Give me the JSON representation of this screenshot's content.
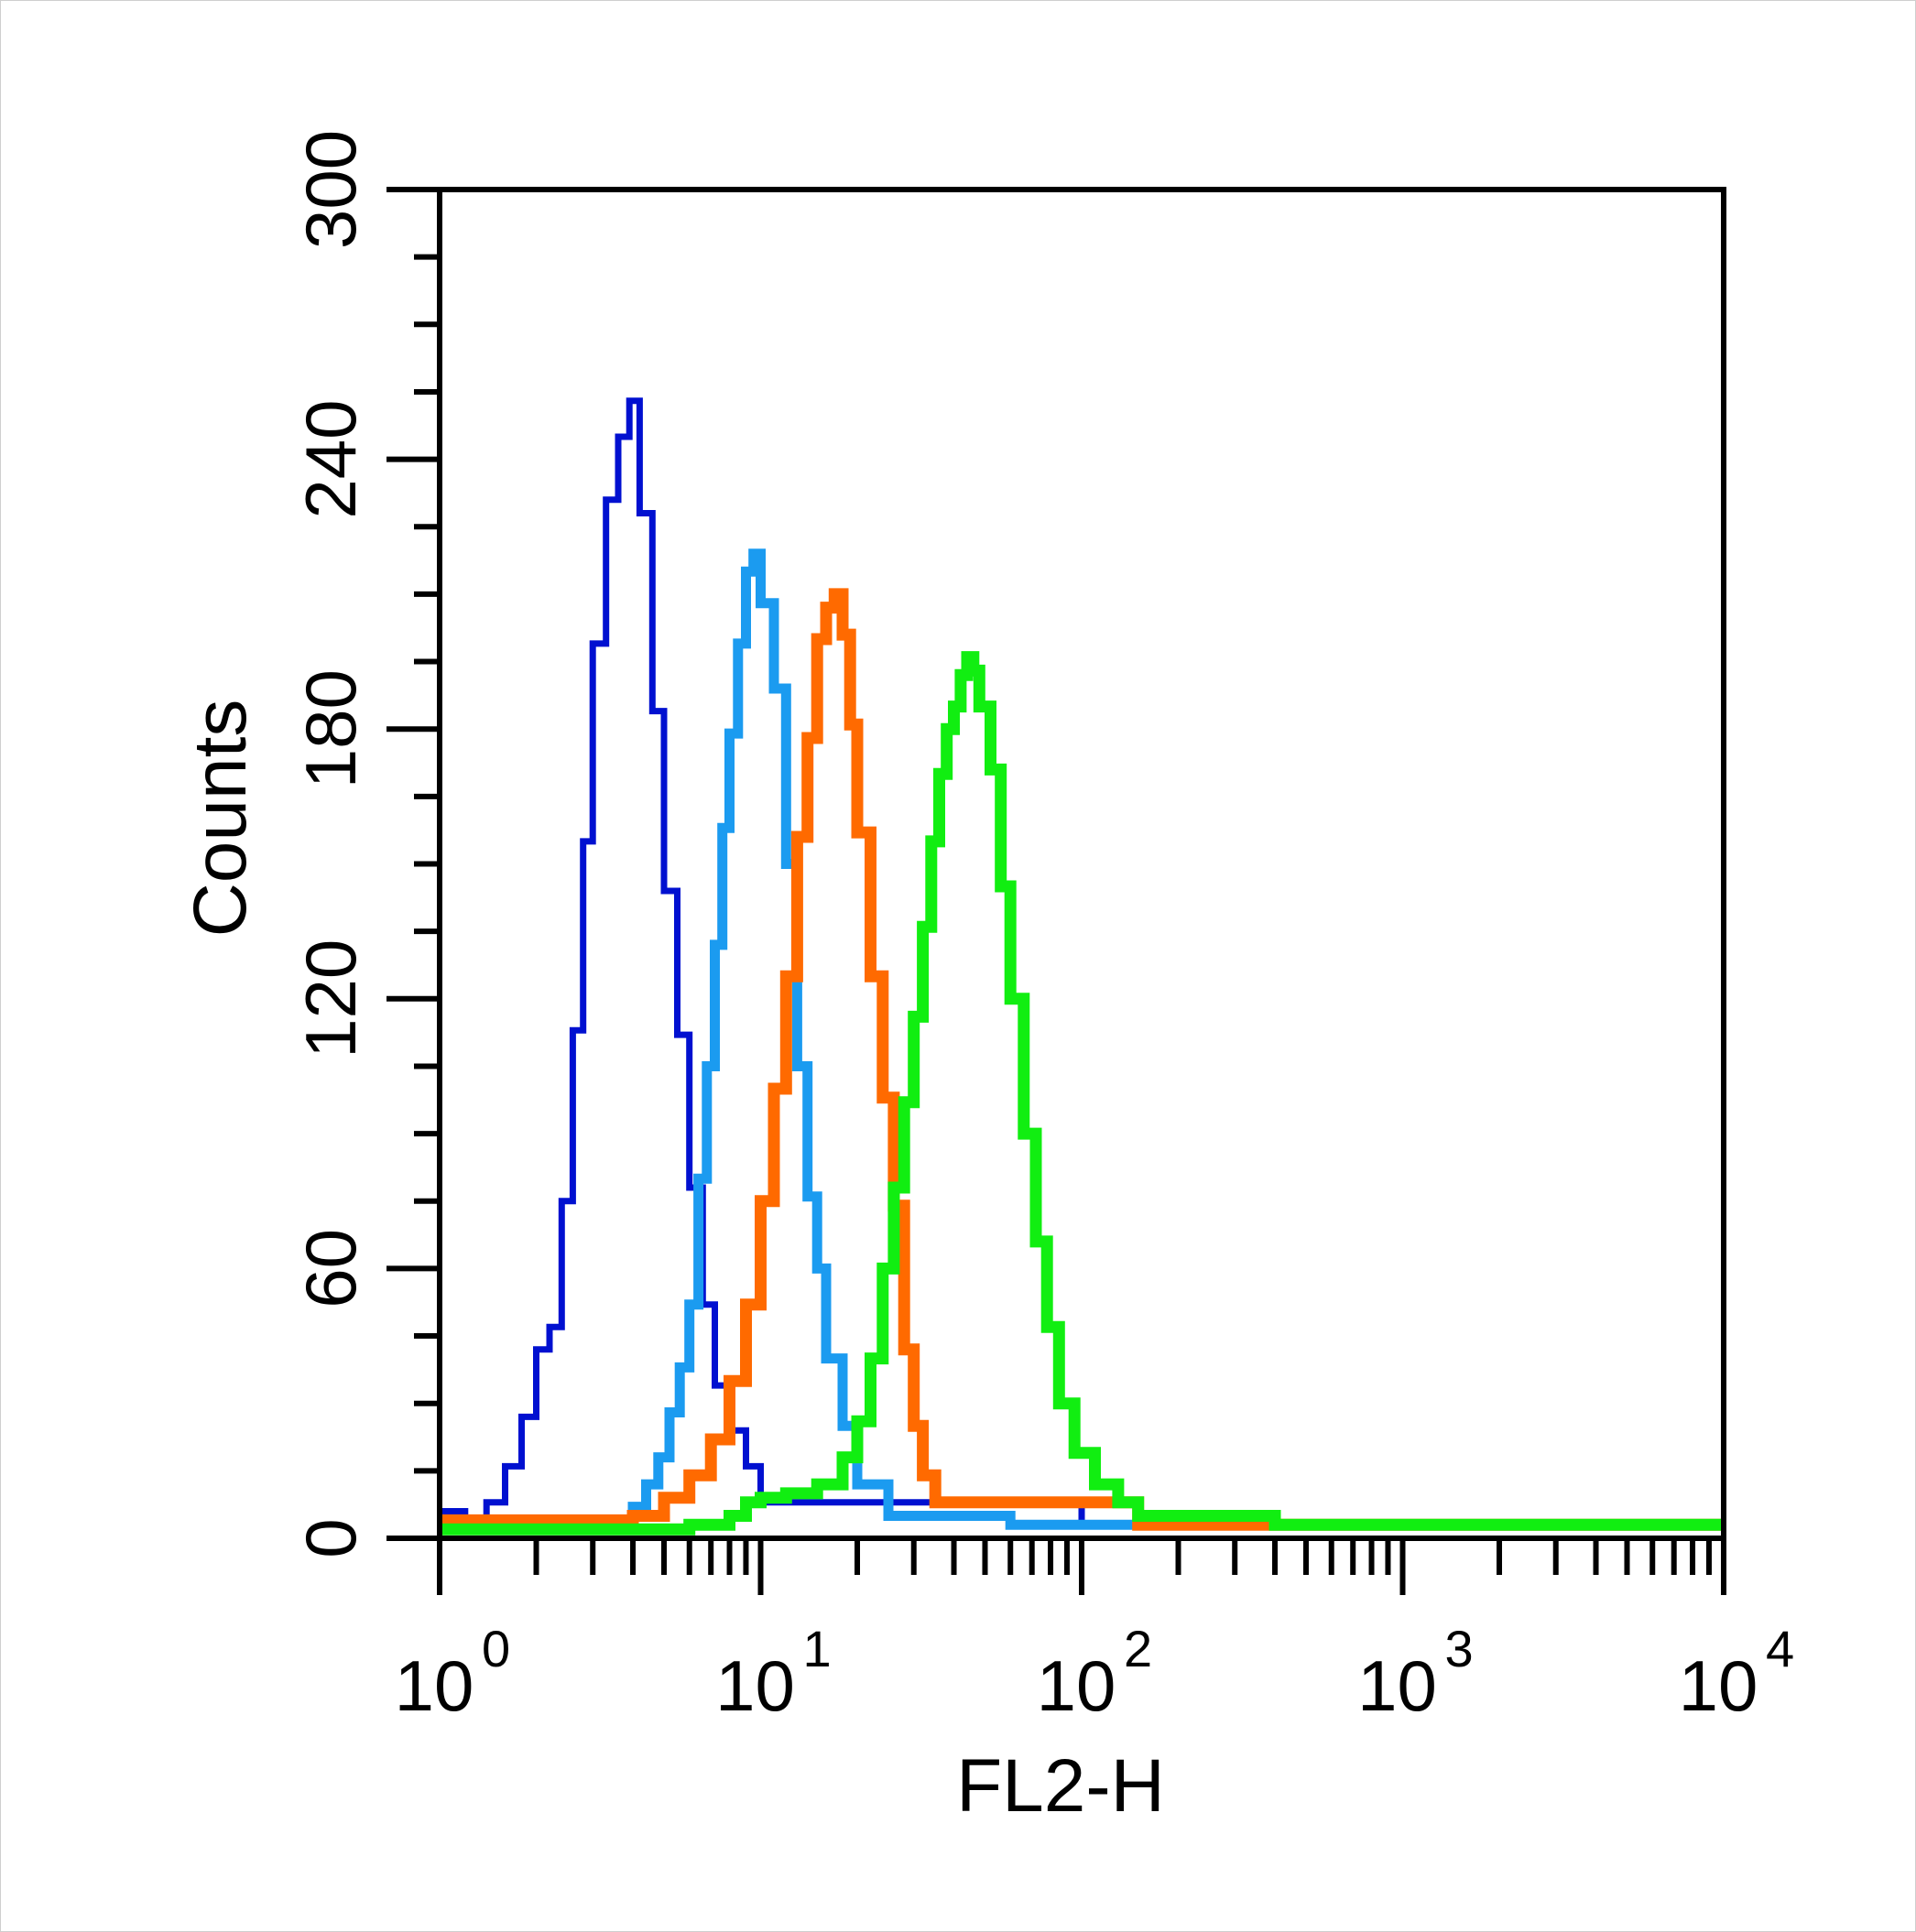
{
  "chart_data": {
    "type": "histogram",
    "xlabel": "FL2-H",
    "ylabel": "Counts",
    "x_scale": "log",
    "xlim": [
      1,
      10000
    ],
    "ylim": [
      0,
      300
    ],
    "y_ticks": [
      "0",
      "60",
      "120",
      "180",
      "240",
      "300"
    ],
    "x_ticks": [
      {
        "base": "10",
        "exp": "0"
      },
      {
        "base": "10",
        "exp": "1"
      },
      {
        "base": "10",
        "exp": "2"
      },
      {
        "base": "10",
        "exp": "3"
      },
      {
        "base": "10",
        "exp": "4"
      }
    ],
    "grid": false,
    "legend": "none",
    "series": [
      {
        "color": "#0010d0",
        "x": [
          1.0,
          1.2,
          1.4,
          1.6,
          1.8,
          2.0,
          2.2,
          2.4,
          2.6,
          2.8,
          3.0,
          3.3,
          3.6,
          3.9,
          4.2,
          4.6,
          5.0,
          5.5,
          6.0,
          6.6,
          7.2,
          8.0,
          9.0,
          10.0,
          100.0
        ],
        "values": [
          6,
          3,
          8,
          16,
          27,
          42,
          47,
          75,
          113,
          155,
          199,
          231,
          245,
          253,
          228,
          184,
          144,
          112,
          78,
          52,
          34,
          24,
          16,
          8,
          3
        ]
      },
      {
        "color": "#1b9bf0",
        "x": [
          1.0,
          4.0,
          4.4,
          4.8,
          5.2,
          5.6,
          6.0,
          6.4,
          6.8,
          7.2,
          7.6,
          8.0,
          8.5,
          9.0,
          9.5,
          10.0,
          11.0,
          12.0,
          13.0,
          14.0,
          15.0,
          16.0,
          18.0,
          20.0,
          25.0,
          60.0
        ],
        "values": [
          3,
          7,
          12,
          18,
          28,
          38,
          52,
          80,
          105,
          132,
          158,
          179,
          199,
          215,
          219,
          208,
          189,
          150,
          105,
          76,
          60,
          40,
          25,
          12,
          5,
          3
        ]
      },
      {
        "color": "#ff6a00",
        "x": [
          1.0,
          4.0,
          5.0,
          6.0,
          7.0,
          8.0,
          9.0,
          10.0,
          11.0,
          12.0,
          13.0,
          14.0,
          15.0,
          16.0,
          17.0,
          18.0,
          19.0,
          20.0,
          22.0,
          24.0,
          26.0,
          28.0,
          30.0,
          32.0,
          35.0,
          150.0
        ],
        "values": [
          4,
          5,
          9,
          14,
          22,
          35,
          52,
          75,
          100,
          125,
          156,
          178,
          200,
          207,
          210,
          201,
          181,
          157,
          125,
          98,
          74,
          42,
          25,
          14,
          8,
          3
        ]
      },
      {
        "color": "#11ee11",
        "x": [
          1.0,
          6.0,
          8.0,
          9.0,
          10.0,
          12.0,
          15.0,
          18.0,
          20.0,
          22.0,
          24.0,
          26.0,
          28.0,
          30.0,
          32.0,
          34.0,
          36.0,
          38.0,
          40.0,
          42.0,
          44.0,
          46.0,
          48.0,
          52.0,
          56.0,
          60.0,
          66.0,
          72.0,
          78.0,
          85.0,
          95.0,
          110.0,
          130.0,
          150.0,
          400.0,
          10000.0
        ],
        "values": [
          2,
          3,
          5,
          8,
          9,
          10,
          12,
          18,
          26,
          40,
          60,
          78,
          97,
          116,
          136,
          155,
          170,
          180,
          185,
          192,
          196,
          193,
          185,
          171,
          145,
          120,
          90,
          66,
          47,
          30,
          19,
          12,
          8,
          5,
          3,
          3
        ]
      }
    ]
  }
}
